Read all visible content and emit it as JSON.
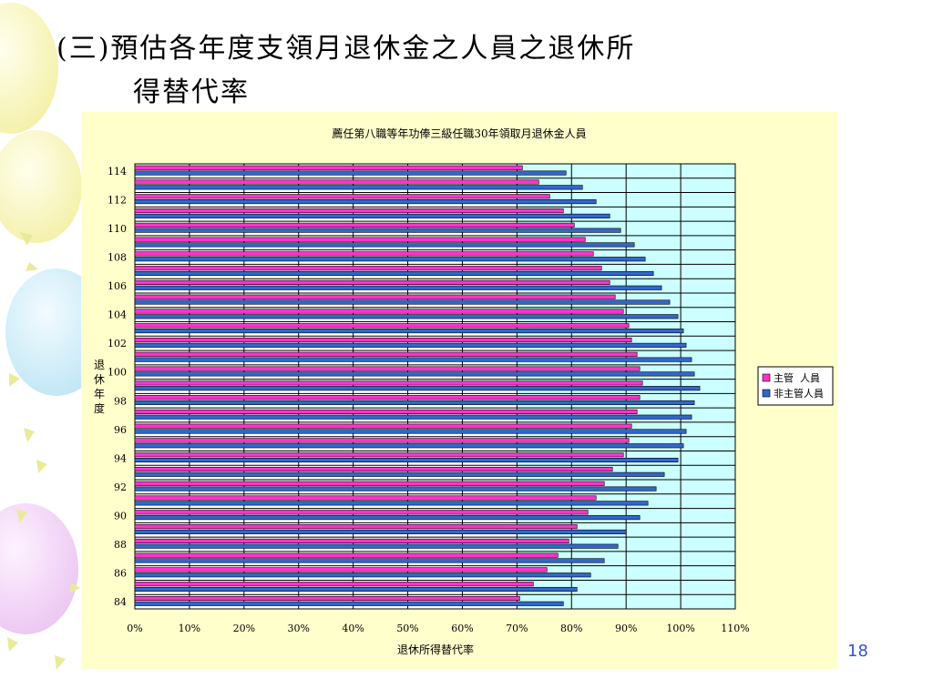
{
  "slide": {
    "title_line1": "(三)預估各年度支領月退休金之人員之退休所",
    "title_line2": "得替代率",
    "page_number": "18"
  },
  "colors": {
    "accent_pink": "#ff33cc",
    "accent_blue": "#3366cc",
    "panel_bg": "#ffffcc",
    "plot_bg": "#ccffff"
  },
  "chart_data": {
    "type": "bar",
    "orientation": "horizontal",
    "title": "薦任第八職等年功俸三級任職30年領取月退休金人員",
    "ylabel": "退休年度",
    "xlabel": "退休所得替代率",
    "categories": [
      "84",
      "85",
      "86",
      "87",
      "88",
      "89",
      "90",
      "91",
      "92",
      "93",
      "94",
      "95",
      "96",
      "97",
      "98",
      "99",
      "100",
      "101",
      "102",
      "103",
      "104",
      "105",
      "106",
      "107",
      "108",
      "109",
      "110",
      "111",
      "112",
      "113",
      "114"
    ],
    "y_tick_labels": [
      "84",
      "86",
      "88",
      "90",
      "92",
      "94",
      "96",
      "98",
      "100",
      "102",
      "104",
      "106",
      "108",
      "110",
      "112",
      "114"
    ],
    "x_tick_labels": [
      "0%",
      "10%",
      "20%",
      "30%",
      "40%",
      "50%",
      "60%",
      "70%",
      "80%",
      "90%",
      "100%",
      "110%"
    ],
    "xlim": [
      0,
      110
    ],
    "grid": "vertical",
    "legend_position": "right",
    "series": [
      {
        "name": "主管  人員",
        "color": "#ff33cc",
        "values": [
          70.5,
          73,
          75.5,
          77.5,
          79.5,
          81,
          83,
          84.5,
          86,
          87.5,
          89.5,
          90.5,
          91,
          92,
          92.5,
          93,
          92.5,
          92,
          91,
          90.5,
          89.5,
          88,
          87,
          85.5,
          84,
          82.5,
          80.5,
          78.5,
          76,
          74,
          71
        ]
      },
      {
        "name": "非主管人員",
        "color": "#3366cc",
        "values": [
          78.5,
          81,
          83.5,
          86,
          88.5,
          90,
          92.5,
          94,
          95.5,
          97,
          99.5,
          100.5,
          101,
          102,
          102.5,
          103.5,
          102.5,
          102,
          101,
          100.5,
          99.5,
          98,
          96.5,
          95,
          93.5,
          91.5,
          89,
          87,
          84.5,
          82,
          79
        ]
      }
    ]
  }
}
